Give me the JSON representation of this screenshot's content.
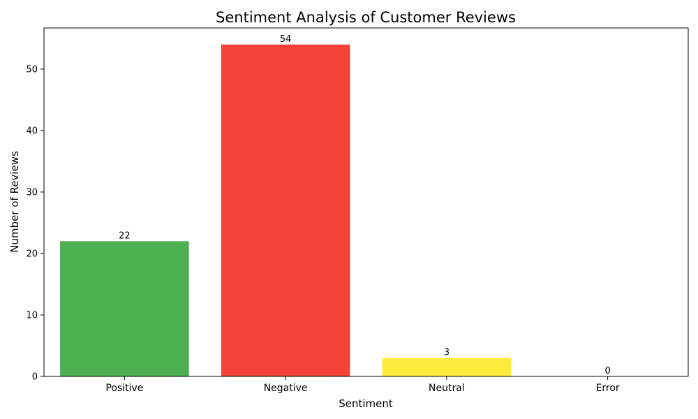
{
  "chart_data": {
    "type": "bar",
    "title": "Sentiment Analysis of Customer Reviews",
    "xlabel": "Sentiment",
    "ylabel": "Number of Reviews",
    "categories": [
      "Positive",
      "Negative",
      "Neutral",
      "Error"
    ],
    "values": [
      22,
      54,
      3,
      0
    ],
    "data_labels": [
      "22",
      "54",
      "3",
      "0"
    ],
    "colors": [
      "#4caf50",
      "#f44336",
      "#ffeb3b",
      "#9e9e9e"
    ],
    "ylim": [
      0,
      56.7
    ],
    "yticks": [
      0,
      10,
      20,
      30,
      40,
      50
    ],
    "grid": false,
    "legend": "none"
  }
}
